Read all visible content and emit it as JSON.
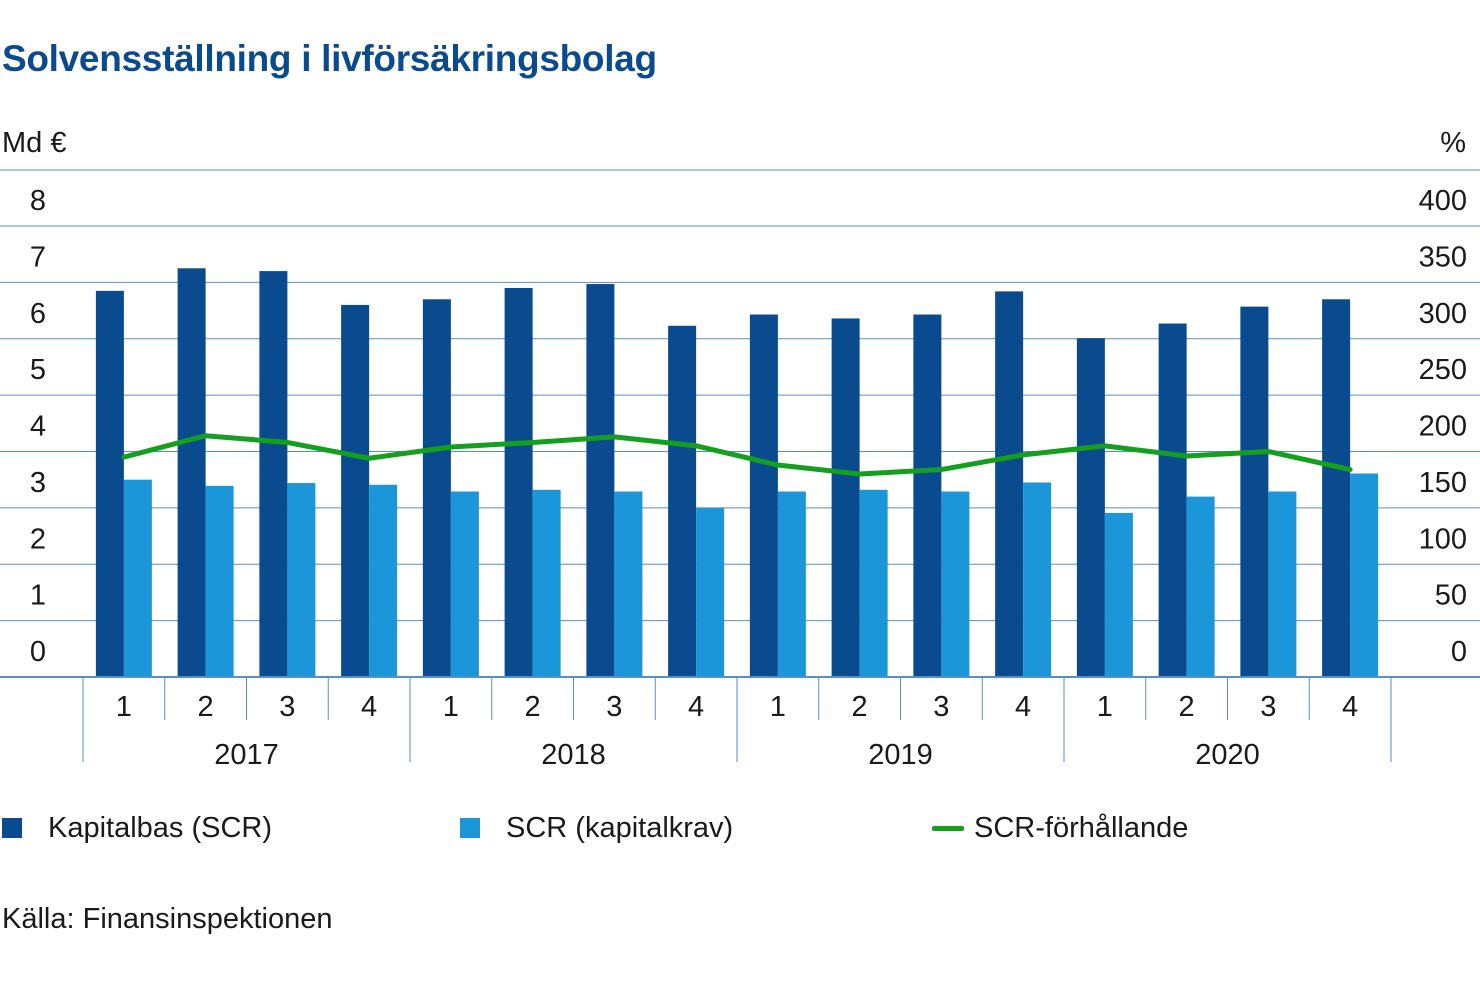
{
  "title": "Solvensställning i livförsäkringsbolag",
  "source": "Källa: Finansinspektionen",
  "chart_data": {
    "type": "bar",
    "title": "Solvensställning i livförsäkringsbolag",
    "ylabel_left": "Md €",
    "ylabel_right": "%",
    "ylim_left": [
      0,
      8
    ],
    "ylim_right": [
      0,
      400
    ],
    "yticks_left": [
      "0",
      "1",
      "2",
      "3",
      "4",
      "5",
      "6",
      "7",
      "8"
    ],
    "yticks_right": [
      "0",
      "50",
      "100",
      "150",
      "200",
      "250",
      "300",
      "350",
      "400"
    ],
    "grid": true,
    "legend_position": "bottom",
    "categories": [
      "1",
      "2",
      "3",
      "4",
      "1",
      "2",
      "3",
      "4",
      "1",
      "2",
      "3",
      "4",
      "1",
      "2",
      "3",
      "4"
    ],
    "groups": [
      "2017",
      "2018",
      "2019",
      "2020"
    ],
    "series": [
      {
        "name": "Kapitalbas (SCR)",
        "type": "bar",
        "axis": "left",
        "color": "#0a4a8f",
        "values": [
          6.85,
          7.25,
          7.2,
          6.6,
          6.7,
          6.9,
          6.97,
          6.23,
          6.43,
          6.36,
          6.43,
          6.84,
          6.01,
          6.27,
          6.57,
          6.7
        ]
      },
      {
        "name": "SCR (kapitalkrav)",
        "type": "bar",
        "axis": "left",
        "color": "#1a96d9",
        "values": [
          3.5,
          3.39,
          3.44,
          3.41,
          3.29,
          3.32,
          3.29,
          3.0,
          3.29,
          3.32,
          3.29,
          3.45,
          2.91,
          3.2,
          3.29,
          3.61
        ]
      },
      {
        "name": "SCR-förhållande",
        "type": "line",
        "axis": "right",
        "color": "#14a01e",
        "values": [
          195,
          214,
          208,
          194,
          204,
          208,
          213,
          205,
          188,
          180,
          184,
          197,
          205,
          196,
          200,
          184
        ]
      }
    ]
  }
}
